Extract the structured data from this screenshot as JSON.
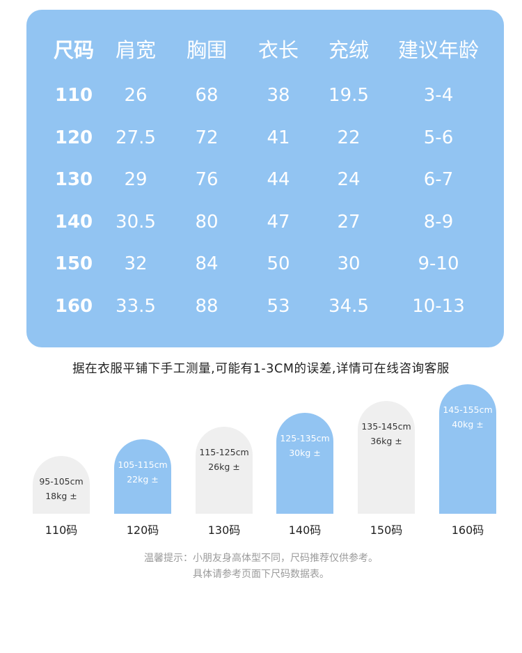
{
  "table": {
    "headers": [
      "尺码",
      "肩宽",
      "胸围",
      "衣长",
      "充绒",
      "建议年龄"
    ],
    "rows": [
      [
        "110",
        "26",
        "68",
        "38",
        "19.5",
        "3-4"
      ],
      [
        "120",
        "27.5",
        "72",
        "41",
        "22",
        "5-6"
      ],
      [
        "130",
        "29",
        "76",
        "44",
        "24",
        "6-7"
      ],
      [
        "140",
        "30.5",
        "80",
        "47",
        "27",
        "8-9"
      ],
      [
        "150",
        "32",
        "84",
        "50",
        "30",
        "9-10"
      ],
      [
        "160",
        "33.5",
        "88",
        "53",
        "34.5",
        "10-13"
      ]
    ]
  },
  "note": "据在衣服平铺下手工测量,可能有1-3CM的误差,详情可在线咨询客服",
  "sizes": [
    {
      "height": "95-105cm",
      "weight": "18kg ±",
      "label": "110码",
      "color": "grey"
    },
    {
      "height": "105-115cm",
      "weight": "22kg ±",
      "label": "120码",
      "color": "blue"
    },
    {
      "height": "115-125cm",
      "weight": "26kg ±",
      "label": "130码",
      "color": "grey"
    },
    {
      "height": "125-135cm",
      "weight": "30kg ±",
      "label": "140码",
      "color": "blue"
    },
    {
      "height": "135-145cm",
      "weight": "36kg ±",
      "label": "150码",
      "color": "grey"
    },
    {
      "height": "145-155cm",
      "weight": "40kg ±",
      "label": "160码",
      "color": "blue"
    }
  ],
  "tip": {
    "line1": "温馨提示：小朋友身高体型不同，尺码推荐仅供参考。",
    "line2": "具体请参考页面下尺码数据表。"
  }
}
